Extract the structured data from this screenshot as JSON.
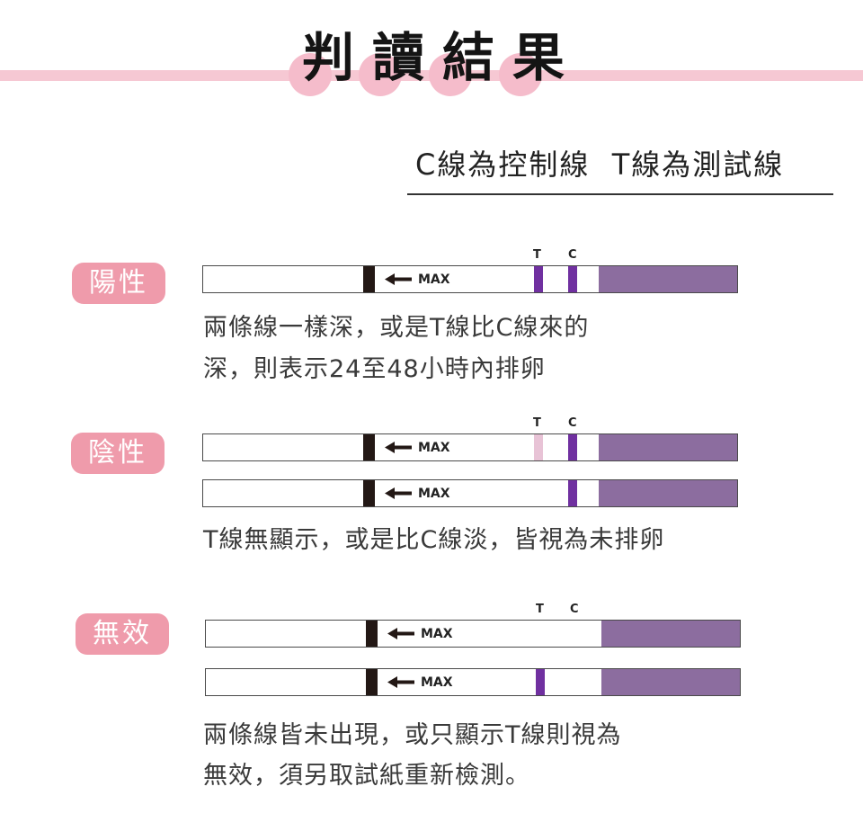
{
  "title": {
    "chars": [
      "判",
      "讀",
      "結",
      "果"
    ]
  },
  "subtitle": "C線為控制線  T線為測試線",
  "strip_labels": {
    "max": "MAX",
    "t": "T",
    "c": "C"
  },
  "colors": {
    "brand_pink": "#f6c8d3",
    "badge_pink": "#ef9bab",
    "strong_line": "#7030a0",
    "faint_line": "#e8c3d6",
    "pad": "#8c6d9f"
  },
  "sections": [
    {
      "badge": "陽性",
      "strips": [
        {
          "t_line": "strong",
          "c_line": "strong"
        }
      ],
      "description": [
        "兩條線一樣深，或是T線比C線來的",
        "深，則表示24至48小時內排卵"
      ]
    },
    {
      "badge": "陰性",
      "strips": [
        {
          "t_line": "faint",
          "c_line": "strong"
        },
        {
          "t_line": "none",
          "c_line": "strong"
        }
      ],
      "description": [
        "T線無顯示，或是比C線淡，皆視為未排卵"
      ]
    },
    {
      "badge": "無效",
      "strips": [
        {
          "t_line": "none",
          "c_line": "none"
        },
        {
          "t_line": "strong",
          "c_line": "none"
        }
      ],
      "description": [
        "兩條線皆未出現，或只顯示T線則視為",
        "無效，須另取試紙重新檢測。"
      ]
    }
  ]
}
